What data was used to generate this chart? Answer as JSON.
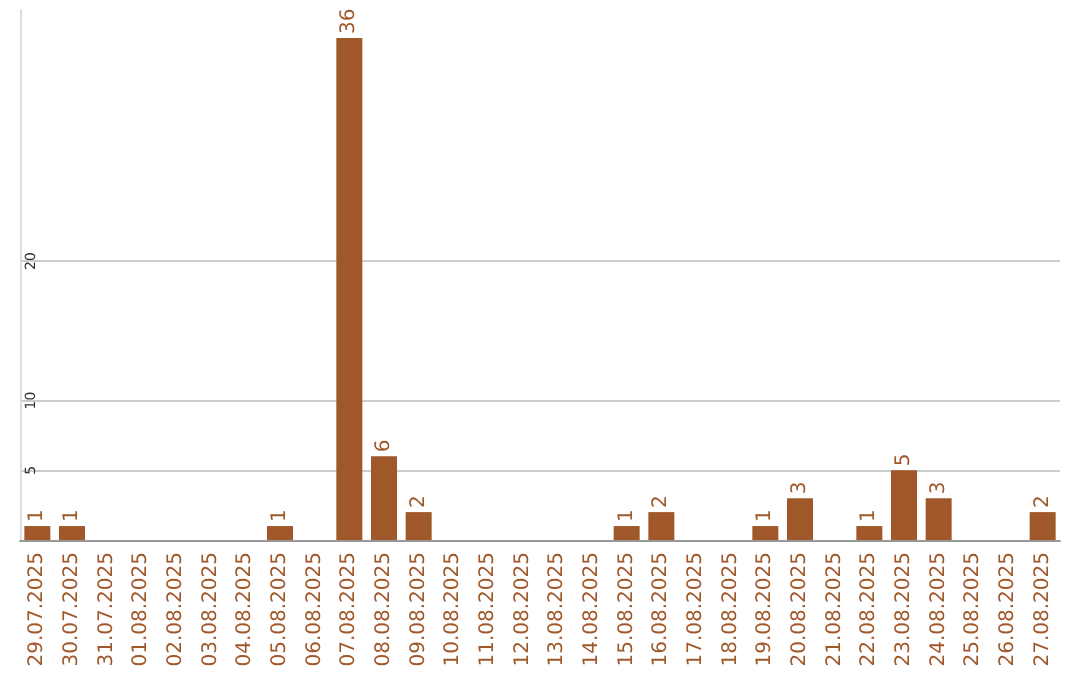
{
  "chart_data": {
    "type": "bar",
    "categories": [
      "29.07.2025",
      "30.07.2025",
      "31.07.2025",
      "01.08.2025",
      "02.08.2025",
      "03.08.2025",
      "04.08.2025",
      "05.08.2025",
      "06.08.2025",
      "07.08.2025",
      "08.08.2025",
      "09.08.2025",
      "10.08.2025",
      "11.08.2025",
      "12.08.2025",
      "13.08.2025",
      "14.08.2025",
      "15.08.2025",
      "16.08.2025",
      "17.08.2025",
      "18.08.2025",
      "19.08.2025",
      "20.08.2025",
      "21.08.2025",
      "22.08.2025",
      "23.08.2025",
      "24.08.2025",
      "25.08.2025",
      "26.08.2025",
      "27.08.2025"
    ],
    "values": [
      1,
      1,
      0,
      0,
      0,
      0,
      0,
      1,
      0,
      36,
      6,
      2,
      0,
      0,
      0,
      0,
      0,
      1,
      2,
      0,
      0,
      1,
      3,
      0,
      1,
      5,
      3,
      0,
      0,
      2
    ],
    "value_labels": [
      "1",
      "1",
      null,
      null,
      null,
      null,
      null,
      "1",
      null,
      "36",
      "6",
      "2",
      null,
      null,
      null,
      null,
      null,
      "1",
      "2",
      null,
      null,
      "1",
      "3",
      null,
      "1",
      "5",
      "3",
      null,
      null,
      "2"
    ],
    "color": "#a0582b",
    "ylim": [
      0,
      38
    ],
    "yticks": [
      5,
      10,
      20
    ],
    "grid": "y"
  }
}
